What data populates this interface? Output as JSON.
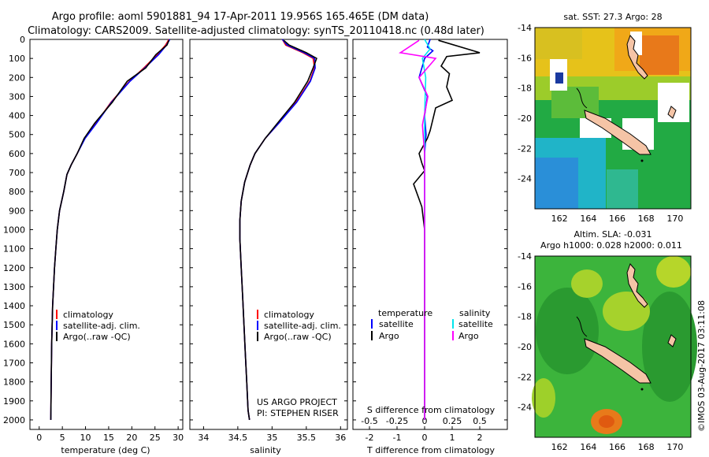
{
  "title_line1": "Argo profile: aoml 5901881_94 17-Apr-2011 19.956S 165.465E (DM data)",
  "title_line2": "Climatology: CARS2009. Satellite-adjusted climatology: synTS_20110418.nc (0.48d later)",
  "colors": {
    "climatology": "#ff0000",
    "satellite": "#0000ff",
    "argo": "#000000",
    "sal_satellite": "#00e5ee",
    "sal_argo": "#ff00ff"
  },
  "depth_ticks": [
    "0",
    "100",
    "200",
    "300",
    "400",
    "500",
    "600",
    "700",
    "800",
    "900",
    "1000",
    "1100",
    "1200",
    "1300",
    "1400",
    "1500",
    "1600",
    "1700",
    "1800",
    "1900",
    "2000"
  ],
  "panel_temp": {
    "xlabel": "temperature (deg C)",
    "xticks": [
      "0",
      "5",
      "10",
      "15",
      "20",
      "25",
      "30"
    ],
    "legend": [
      "climatology",
      "satellite-adj. clim.",
      "Argo(..raw -QC)"
    ]
  },
  "panel_sal": {
    "xlabel": "salinity",
    "xticks": [
      "34",
      "34.5",
      "35",
      "35.5",
      "36"
    ],
    "legend": [
      "climatology",
      "satellite-adj. clim.",
      "Argo(..raw -QC)"
    ],
    "credit1": "US ARGO PROJECT",
    "credit2": "PI: STEPHEN RISER"
  },
  "panel_diff": {
    "xlabel": "T difference from climatology",
    "top_label": "S difference from climatology",
    "xticks_bottom": [
      "-2",
      "-1",
      "0",
      "1",
      "2"
    ],
    "xticks_top": [
      "-0.5",
      "-0.25",
      "0",
      "0.25",
      "0.5"
    ],
    "legend_temp_head": "temperature",
    "legend_sal_head": "salinity",
    "legend_temp": [
      "satellite",
      "Argo"
    ],
    "legend_sal": [
      "satellite",
      "Argo"
    ]
  },
  "map_sst": {
    "title": "sat. SST: 27.3 Argo: 28",
    "yticks": [
      "-14",
      "-16",
      "-18",
      "-20",
      "-22",
      "-24"
    ],
    "xticks": [
      "162",
      "164",
      "166",
      "168",
      "170"
    ]
  },
  "map_sla": {
    "title1": "Altim. SLA: -0.031",
    "title2": "Argo h1000: 0.028 h2000: 0.011",
    "yticks": [
      "-14",
      "-16",
      "-18",
      "-20",
      "-22",
      "-24"
    ],
    "xticks": [
      "162",
      "164",
      "166",
      "168",
      "170"
    ]
  },
  "stamp": "©IMOS 03-Aug-2017 03:11:08",
  "chart_data": [
    {
      "type": "line",
      "xlabel": "temperature (deg C)",
      "ylim": [
        2050,
        0
      ],
      "xlim": [
        -2,
        31
      ],
      "series": [
        {
          "name": "climatology",
          "x": [
            28,
            27.3,
            25.5,
            22.6,
            19.5,
            15.5,
            12.3,
            9.8,
            8.2,
            6.9,
            6.0,
            5.3,
            4.4,
            3.9,
            3.6,
            3.3,
            3.1,
            2.9,
            2.8,
            2.7,
            2.6,
            2.5
          ],
          "y": [
            0,
            30,
            80,
            150,
            220,
            330,
            440,
            520,
            600,
            660,
            710,
            800,
            900,
            1000,
            1100,
            1200,
            1300,
            1400,
            1500,
            1600,
            1800,
            2000
          ]
        },
        {
          "name": "satellite-adj. clim.",
          "x": [
            28.2,
            27.5,
            25.8,
            22.8,
            19.6,
            15.6,
            12.4,
            9.9,
            8.2,
            6.9,
            6.0,
            5.3,
            4.4,
            3.9,
            3.6,
            3.3,
            3.1,
            2.9,
            2.8,
            2.7,
            2.6,
            2.5
          ],
          "y": [
            0,
            30,
            80,
            150,
            220,
            330,
            440,
            520,
            600,
            660,
            710,
            800,
            900,
            1000,
            1100,
            1200,
            1300,
            1400,
            1500,
            1600,
            1800,
            2000
          ]
        },
        {
          "name": "Argo(..raw -QC)",
          "x": [
            28,
            27.6,
            25.2,
            23.0,
            19.0,
            15.8,
            12.0,
            9.7,
            8.2,
            6.9,
            6.0,
            5.3,
            4.4,
            3.9,
            3.6,
            3.3,
            3.1,
            2.9,
            2.8,
            2.7,
            2.6,
            2.5
          ],
          "y": [
            5,
            30,
            80,
            150,
            220,
            330,
            440,
            520,
            600,
            660,
            710,
            800,
            900,
            1000,
            1100,
            1200,
            1300,
            1400,
            1500,
            1600,
            1800,
            2000
          ]
        }
      ]
    },
    {
      "type": "line",
      "xlabel": "salinity",
      "ylim": [
        2050,
        0
      ],
      "xlim": [
        33.8,
        36.1
      ],
      "series": [
        {
          "name": "climatology",
          "x": [
            35.15,
            35.2,
            35.45,
            35.6,
            35.62,
            35.55,
            35.35,
            35.1,
            34.9,
            34.75,
            34.68,
            34.6,
            34.55,
            34.53,
            34.53,
            34.55,
            34.57,
            34.59,
            34.61,
            34.63,
            34.65,
            34.67
          ],
          "y": [
            0,
            30,
            70,
            100,
            150,
            220,
            330,
            440,
            520,
            600,
            660,
            750,
            850,
            950,
            1050,
            1200,
            1350,
            1500,
            1650,
            1800,
            1950,
            2000
          ]
        },
        {
          "name": "satellite-adj. clim.",
          "x": [
            35.15,
            35.22,
            35.47,
            35.62,
            35.63,
            35.56,
            35.36,
            35.1,
            34.9,
            34.75,
            34.68,
            34.6,
            34.55,
            34.53,
            34.53,
            34.55,
            34.57,
            34.59,
            34.61,
            34.63,
            34.65,
            34.67
          ],
          "y": [
            0,
            30,
            70,
            100,
            150,
            220,
            330,
            440,
            520,
            600,
            660,
            750,
            850,
            950,
            1050,
            1200,
            1350,
            1500,
            1650,
            1800,
            1950,
            2000
          ]
        },
        {
          "name": "Argo(..raw -QC)",
          "x": [
            35.17,
            35.25,
            35.5,
            35.65,
            35.6,
            35.52,
            35.33,
            35.08,
            34.9,
            34.75,
            34.68,
            34.6,
            34.55,
            34.53,
            34.53,
            34.55,
            34.57,
            34.59,
            34.61,
            34.63,
            34.65,
            34.67
          ],
          "y": [
            5,
            30,
            70,
            100,
            150,
            220,
            330,
            440,
            520,
            600,
            660,
            750,
            850,
            950,
            1050,
            1200,
            1350,
            1500,
            1650,
            1800,
            1950,
            2000
          ]
        }
      ]
    },
    {
      "type": "line",
      "xlabel": "T difference from climatology",
      "x2label": "S difference from climatology",
      "ylim": [
        2050,
        0
      ],
      "xlim": [
        -2.6,
        3.0
      ],
      "x2lim": [
        -0.65,
        0.75
      ],
      "series": [
        {
          "name": "temperature satellite",
          "axis": "T",
          "x": [
            0.2,
            0.1,
            0.3,
            0.0,
            -0.2,
            0.1,
            0.0,
            0.05,
            0.0,
            0.0,
            0.0,
            0.0,
            0.0
          ],
          "y": [
            0,
            40,
            60,
            100,
            200,
            300,
            400,
            500,
            600,
            800,
            1200,
            1600,
            2000
          ]
        },
        {
          "name": "temperature Argo",
          "axis": "T",
          "x": [
            0.5,
            2.0,
            0.8,
            0.6,
            0.9,
            0.8,
            1.0,
            0.4,
            0.3,
            0.2,
            0.1,
            -0.2,
            -0.1,
            0.0,
            -0.4,
            -0.3,
            -0.1,
            0.0,
            0.0,
            0.0
          ],
          "y": [
            5,
            70,
            90,
            140,
            180,
            250,
            320,
            360,
            420,
            480,
            520,
            600,
            650,
            690,
            760,
            800,
            880,
            1000,
            1500,
            2000
          ]
        },
        {
          "name": "salinity satellite",
          "axis": "S",
          "x": [
            0.0,
            0.05,
            -0.02,
            0.01,
            0.0,
            0.0,
            0.0,
            0.0
          ],
          "y": [
            0,
            50,
            100,
            200,
            400,
            800,
            1400,
            2000
          ]
        },
        {
          "name": "salinity Argo",
          "axis": "S",
          "x": [
            -0.05,
            -0.22,
            0.1,
            -0.05,
            0.03,
            -0.02,
            0.0,
            0.0,
            0.0,
            0.0
          ],
          "y": [
            5,
            70,
            100,
            200,
            300,
            450,
            600,
            1000,
            1500,
            2000
          ]
        }
      ]
    }
  ]
}
